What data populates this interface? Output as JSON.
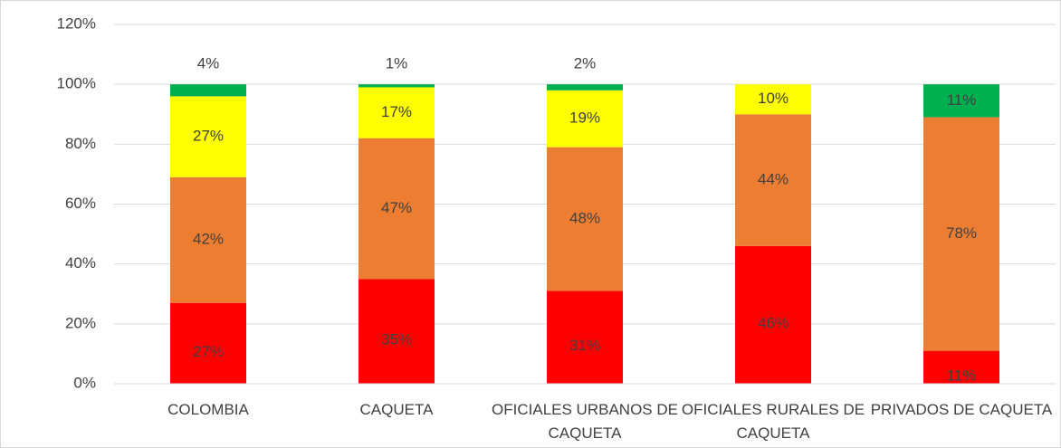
{
  "chart_data": {
    "type": "stacked_bar",
    "categories": [
      "COLOMBIA",
      "CAQUETA",
      "OFICIALES URBANOS DE CAQUETA",
      "OFICIALES RURALES DE CAQUETA",
      "PRIVADOS DE CAQUETA"
    ],
    "series": [
      {
        "color": "#ff0000",
        "values": [
          27,
          35,
          31,
          46,
          11
        ],
        "value_labels": [
          "27%",
          "35%",
          "31%",
          "46%",
          "11%"
        ]
      },
      {
        "color": "#ed7d31",
        "values": [
          42,
          47,
          48,
          44,
          78
        ],
        "value_labels": [
          "42%",
          "47%",
          "48%",
          "44%",
          "78%"
        ]
      },
      {
        "color": "#ffff00",
        "values": [
          27,
          17,
          19,
          10,
          null
        ],
        "value_labels": [
          "27%",
          "17%",
          "19%",
          "10%",
          null
        ]
      },
      {
        "color": "#00b050",
        "values": [
          4,
          1,
          2,
          null,
          11
        ],
        "value_labels": [
          "4%",
          "1%",
          "2%",
          null,
          "11%"
        ]
      }
    ],
    "ylim": [
      0,
      120
    ],
    "yticks": [
      {
        "value": 0,
        "label": "0%"
      },
      {
        "value": 20,
        "label": "20%"
      },
      {
        "value": 40,
        "label": "40%"
      },
      {
        "value": 60,
        "label": "60%"
      },
      {
        "value": 80,
        "label": "80%"
      },
      {
        "value": 100,
        "label": "100%"
      },
      {
        "value": 120,
        "label": "120%"
      }
    ],
    "grid": true
  }
}
